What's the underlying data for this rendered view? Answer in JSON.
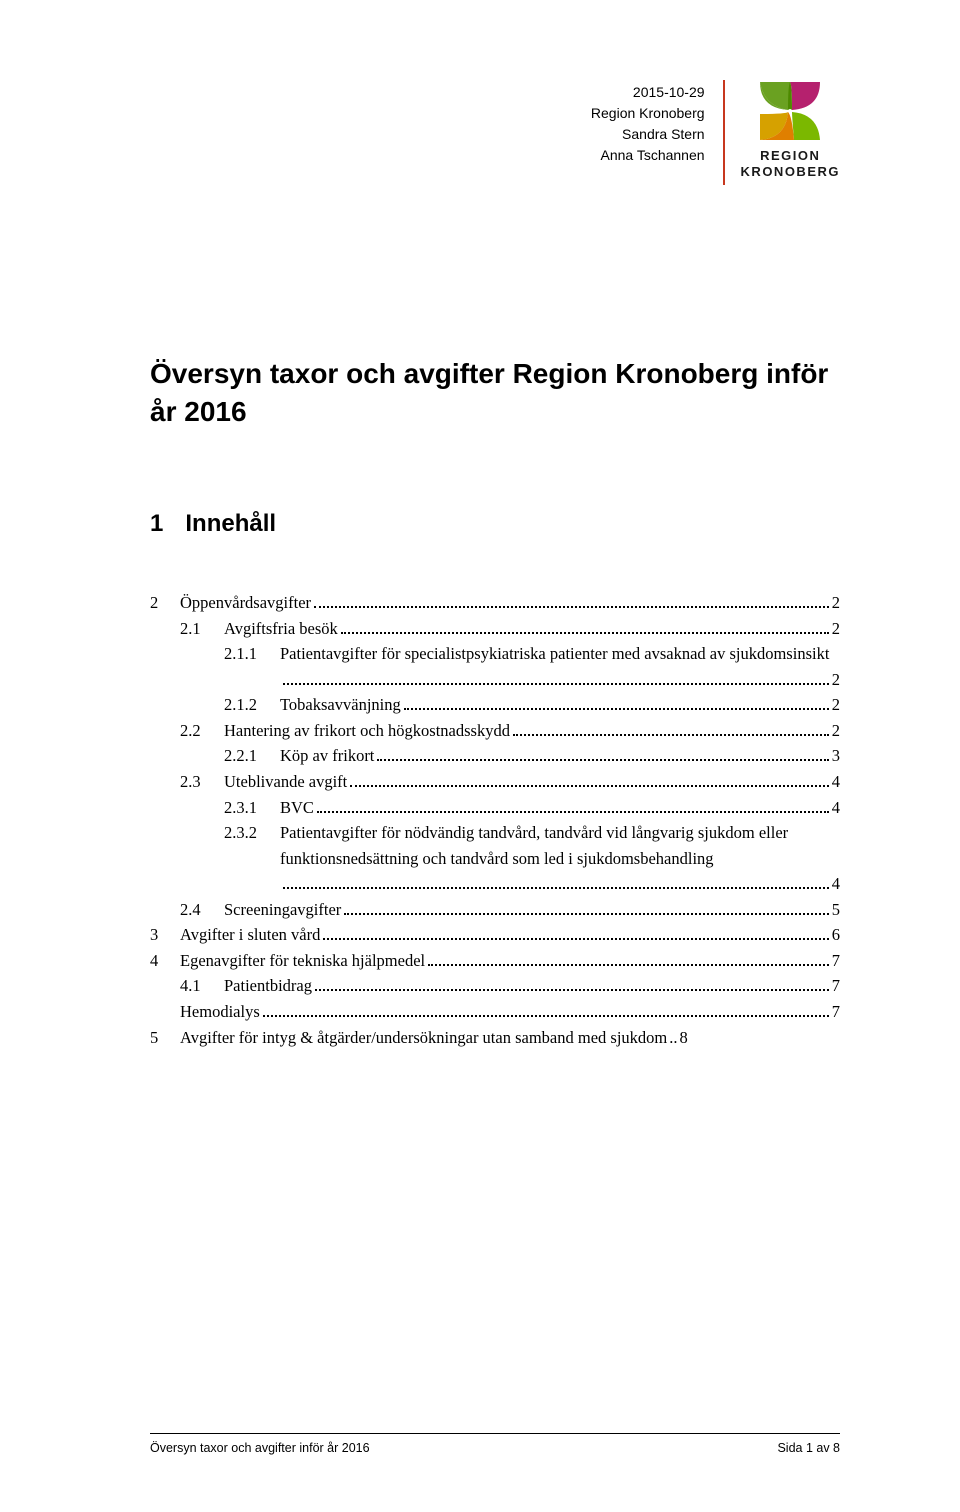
{
  "colors": {
    "divider": "#c7381f",
    "text": "#000000",
    "background": "#ffffff",
    "logo_top_right": "#b5216e",
    "logo_top_left": "#6aa121",
    "logo_bottom_left": "#d6a100",
    "logo_bottom_right": "#7bb800",
    "logo_center": "#e07f00"
  },
  "header": {
    "date": "2015-10-29",
    "org": "Region Kronoberg",
    "author1": "Sandra Stern",
    "author2": "Anna Tschannen",
    "logo_line1": "REGION",
    "logo_line2": "KRONOBERG"
  },
  "title": "Översyn taxor och avgifter Region Kronoberg inför år 2016",
  "section": {
    "num": "1",
    "label": "Innehåll"
  },
  "toc": [
    {
      "level": 0,
      "num": "2",
      "label": "Öppenvårdsavgifter",
      "page": "2"
    },
    {
      "level": 1,
      "num": "2.1",
      "label": "Avgiftsfria besök",
      "page": "2"
    },
    {
      "level": 2,
      "num": "2.1.1",
      "label": "Patientavgifter för specialistpsykiatriska patienter med avsaknad av sjukdomsinsikt",
      "page": "2",
      "wrap": true
    },
    {
      "level": 2,
      "num": "2.1.2",
      "label": "Tobaksavvänjning",
      "page": "2"
    },
    {
      "level": 1,
      "num": "2.2",
      "label": "Hantering av frikort och högkostnadsskydd",
      "page": "2"
    },
    {
      "level": 2,
      "num": "2.2.1",
      "label": "Köp av frikort",
      "page": "3"
    },
    {
      "level": 1,
      "num": "2.3",
      "label": "Uteblivande avgift",
      "page": "4"
    },
    {
      "level": 2,
      "num": "2.3.1",
      "label": "BVC",
      "page": "4"
    },
    {
      "level": 2,
      "num": "2.3.2",
      "label": "Patientavgifter för nödvändig tandvård, tandvård vid långvarig sjukdom eller funktionsnedsättning och tandvård som led i sjukdomsbehandling",
      "page": "4",
      "wrap": true
    },
    {
      "level": 1,
      "num": "2.4",
      "label": "Screeningavgifter",
      "page": "5"
    },
    {
      "level": 0,
      "num": "3",
      "label": "Avgifter i sluten vård",
      "page": "6"
    },
    {
      "level": 0,
      "num": "4",
      "label": "Egenavgifter för tekniska hjälpmedel",
      "page": "7"
    },
    {
      "level": 1,
      "num": "4.1",
      "label": "Patientbidrag",
      "page": "7"
    },
    {
      "level": 0,
      "num": "",
      "label": "Hemodialys",
      "page": "7"
    },
    {
      "level": 0,
      "num": "5",
      "label": "Avgifter för intyg & åtgärder/undersökningar utan samband med sjukdom",
      "page": "8",
      "nodots": true
    }
  ],
  "footer": {
    "left": "Översyn taxor och avgifter inför år 2016",
    "right": "Sida 1 av 8"
  }
}
